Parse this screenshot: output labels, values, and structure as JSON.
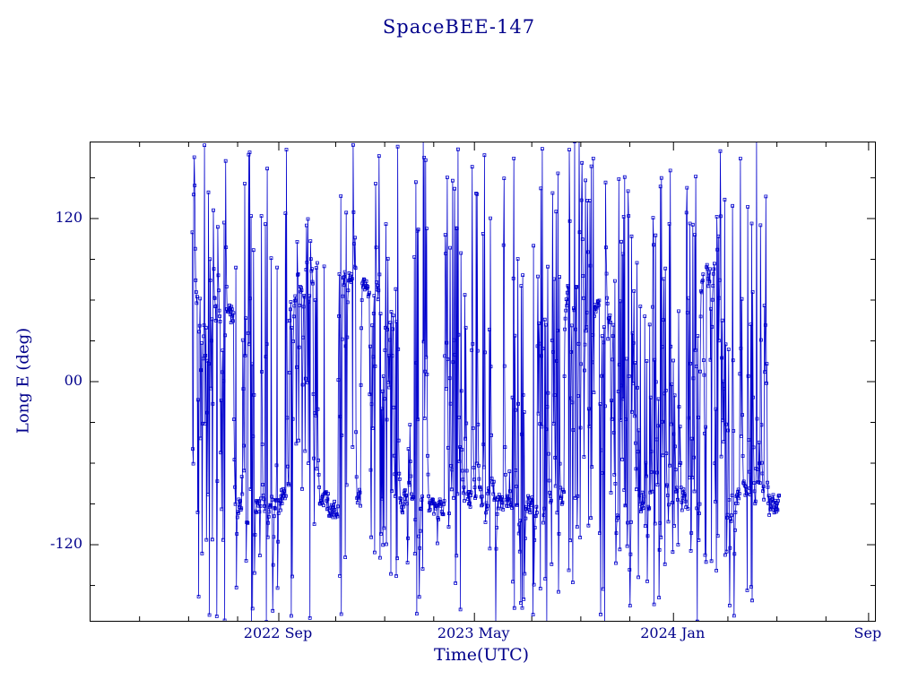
{
  "chart_data": {
    "type": "line",
    "title": "SpaceBEE-147",
    "xlabel": "Time(UTC)",
    "ylabel": "Long E (deg)",
    "series_color": "#0000cc",
    "axis_color": "#000000",
    "text_color": "#00008b",
    "marker": "open-square",
    "legend": "none",
    "grid": false,
    "x_axis": {
      "domain_months": [
        0,
        32
      ],
      "minor_step_months": 2,
      "ticks": [
        {
          "label": "2022 Sep",
          "t": 7.68
        },
        {
          "label": "2023 May",
          "t": 15.66
        },
        {
          "label": "2024 Jan",
          "t": 23.78
        },
        {
          "label": "Sep",
          "t": 31.74
        }
      ]
    },
    "y_axis": {
      "lim": [
        -176,
        176
      ],
      "minor_step_deg": 30,
      "ticks": [
        {
          "label": "120",
          "v": 120
        },
        {
          "label": "00",
          "v": 0
        },
        {
          "label": "-120",
          "v": -120
        }
      ]
    },
    "features": {
      "data_time_extent_months": [
        4.15,
        28.1
      ],
      "dense_band_deg": -88,
      "secondary_band_deg": 62,
      "vertical_wrap_lines": true
    },
    "render_sim": {
      "seed": 20147,
      "t_start": 4.15,
      "t_end": 28.1,
      "dt": 0.02,
      "band1_center": -88,
      "band1_weight": 0.66,
      "band2_center": 62,
      "band2_wander": 16,
      "band_jitter": 7,
      "jump_min": 80,
      "jump_spread": 270,
      "burst_scale": 0.45,
      "burst_prob": 0.75,
      "burst_len_max": 6,
      "density": [
        [
          4.15,
          0.5
        ],
        [
          5.0,
          0.42
        ],
        [
          7.0,
          0.34
        ],
        [
          9.0,
          0.32
        ],
        [
          11.0,
          0.3
        ],
        [
          13.0,
          0.26
        ],
        [
          14.5,
          0.3
        ],
        [
          16.2,
          0.22
        ],
        [
          17.5,
          0.28
        ],
        [
          19.0,
          0.34
        ],
        [
          20.5,
          0.42
        ],
        [
          22.0,
          0.48
        ],
        [
          23.5,
          0.55
        ],
        [
          25.0,
          0.55
        ],
        [
          26.3,
          0.46
        ],
        [
          27.2,
          0.4
        ],
        [
          28.1,
          0.34
        ]
      ]
    }
  }
}
